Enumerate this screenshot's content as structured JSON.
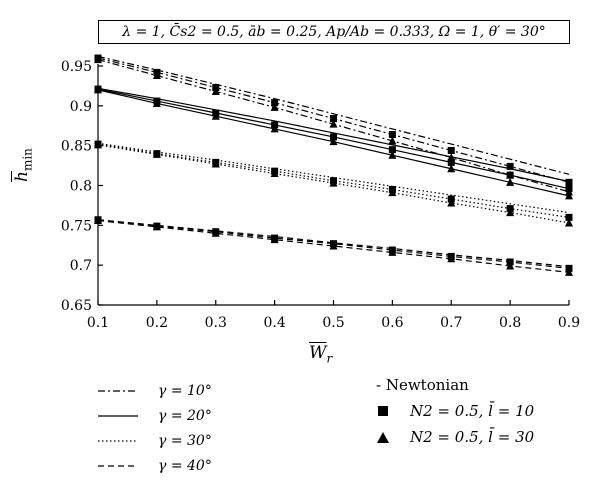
{
  "header": {
    "params": "λ = 1, C̄s2 = 0.5, āb = 0.25, Ap/Ab = 0.333, Ω = 1, θ′ = 30°"
  },
  "chart_data": {
    "type": "line",
    "xlabel": "W̄r",
    "ylabel": "h̄min",
    "xlim": [
      0.1,
      0.9
    ],
    "ylim": [
      0.65,
      0.95
    ],
    "x": [
      0.1,
      0.2,
      0.3,
      0.4,
      0.5,
      0.6,
      0.7,
      0.8,
      0.9
    ],
    "x_ticks": [
      "0.1",
      "0.2",
      "0.3",
      "0.4",
      "0.5",
      "0.6",
      "0.7",
      "0.8",
      "0.9"
    ],
    "y_ticks": [
      "0.65",
      "0.7",
      "0.75",
      "0.8",
      "0.85",
      "0.9",
      "0.95"
    ],
    "y_tick_values": [
      0.65,
      0.7,
      0.75,
      0.8,
      0.85,
      0.9,
      0.95
    ],
    "grid": false,
    "series": [
      {
        "gamma": "10°",
        "style": "dashdot",
        "model": "Newtonian",
        "marker": "none",
        "values": [
          0.962,
          0.945,
          0.927,
          0.909,
          0.89,
          0.871,
          0.852,
          0.833,
          0.814
        ]
      },
      {
        "gamma": "10°",
        "style": "dashdot",
        "model": "N2=0.5, l=10",
        "marker": "square",
        "values": [
          0.96,
          0.942,
          0.923,
          0.904,
          0.884,
          0.864,
          0.844,
          0.824,
          0.804
        ]
      },
      {
        "gamma": "10°",
        "style": "dashdot",
        "model": "N2=0.5, l=30",
        "marker": "triangle",
        "values": [
          0.958,
          0.938,
          0.918,
          0.898,
          0.877,
          0.856,
          0.835,
          0.813,
          0.792
        ]
      },
      {
        "gamma": "20°",
        "style": "solid",
        "model": "Newtonian",
        "marker": "none",
        "values": [
          0.922,
          0.909,
          0.895,
          0.881,
          0.866,
          0.851,
          0.836,
          0.821,
          0.805
        ]
      },
      {
        "gamma": "20°",
        "style": "solid",
        "model": "N2=0.5, l=10",
        "marker": "square",
        "values": [
          0.921,
          0.906,
          0.891,
          0.876,
          0.861,
          0.845,
          0.829,
          0.813,
          0.796
        ]
      },
      {
        "gamma": "20°",
        "style": "solid",
        "model": "N2=0.5, l=30",
        "marker": "triangle",
        "values": [
          0.92,
          0.903,
          0.887,
          0.871,
          0.855,
          0.838,
          0.821,
          0.804,
          0.787
        ]
      },
      {
        "gamma": "30°",
        "style": "dotted",
        "model": "Newtonian",
        "marker": "none",
        "values": [
          0.853,
          0.842,
          0.832,
          0.821,
          0.81,
          0.799,
          0.788,
          0.777,
          0.766
        ]
      },
      {
        "gamma": "30°",
        "style": "dotted",
        "model": "N2=0.5, l=10",
        "marker": "square",
        "values": [
          0.852,
          0.84,
          0.829,
          0.818,
          0.806,
          0.795,
          0.783,
          0.771,
          0.76
        ]
      },
      {
        "gamma": "30°",
        "style": "dotted",
        "model": "N2=0.5, l=30",
        "marker": "triangle",
        "values": [
          0.851,
          0.839,
          0.827,
          0.815,
          0.803,
          0.791,
          0.778,
          0.766,
          0.753
        ]
      },
      {
        "gamma": "40°",
        "style": "dashed",
        "model": "Newtonian",
        "marker": "none",
        "values": [
          0.757,
          0.75,
          0.743,
          0.736,
          0.728,
          0.721,
          0.713,
          0.706,
          0.698
        ]
      },
      {
        "gamma": "40°",
        "style": "dashed",
        "model": "N2=0.5, l=10",
        "marker": "square",
        "values": [
          0.757,
          0.749,
          0.742,
          0.734,
          0.727,
          0.719,
          0.711,
          0.704,
          0.696
        ]
      },
      {
        "gamma": "40°",
        "style": "dashed",
        "model": "N2=0.5, l=30",
        "marker": "triangle",
        "values": [
          0.756,
          0.748,
          0.74,
          0.732,
          0.724,
          0.716,
          0.708,
          0.699,
          0.691
        ]
      }
    ],
    "legend_style": [
      {
        "label": "γ = 10°",
        "style": "dashdot"
      },
      {
        "label": "γ = 20°",
        "style": "solid"
      },
      {
        "label": "γ = 30°",
        "style": "dotted"
      },
      {
        "label": "γ = 40°",
        "style": "dashed"
      }
    ],
    "legend_model": {
      "newtonian": "- Newtonian",
      "square": "N2 = 0.5, l̄ = 10",
      "triangle": "N2 = 0.5, l̄ = 30"
    }
  }
}
